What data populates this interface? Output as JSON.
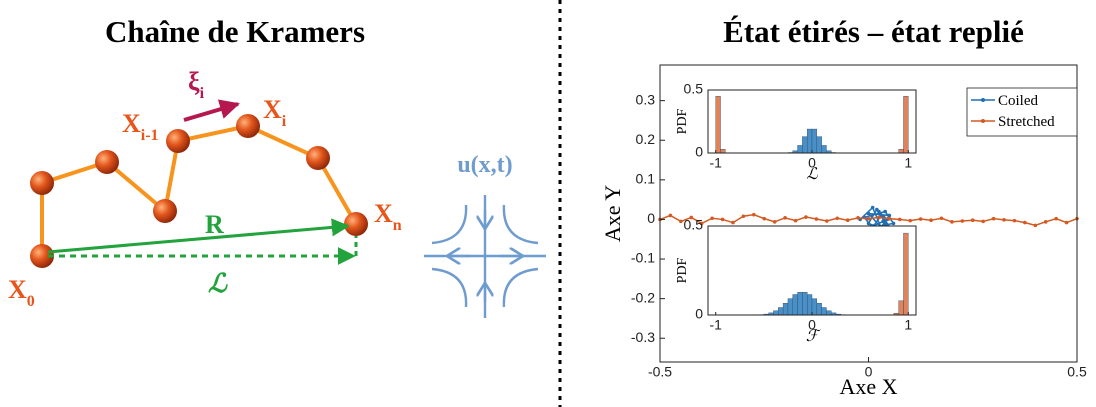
{
  "diagram": {
    "title": "Chaîne de Kramers",
    "x0": {
      "text": "X",
      "sub": "0"
    },
    "xi_minus_1": {
      "text": "X",
      "sub": "i-1"
    },
    "xi": {
      "text": "X",
      "sub": "i"
    },
    "xn": {
      "text": "X",
      "sub": "n"
    },
    "force": {
      "text": "ξ",
      "sub": "i"
    },
    "r": "R",
    "l": "ℒ",
    "flow": "u(x,t)"
  },
  "chart_data": [
    {
      "type": "line",
      "title": "État étirés – état replié",
      "xlabel": "Axe X",
      "ylabel": "Axe Y",
      "xlim": [
        -0.5,
        0.5
      ],
      "ylim": [
        -0.36,
        0.39
      ],
      "xticks": [
        -0.5,
        0,
        0.5
      ],
      "yticks": [
        -0.3,
        -0.2,
        -0.1,
        0,
        0.1,
        0.2,
        0.3
      ],
      "legend": "upper right",
      "series": [
        {
          "name": "Coiled",
          "color": "#1f6fb4",
          "x": [
            -0.02,
            0.01,
            0.03,
            0.0,
            0.05,
            0.02,
            -0.01,
            0.04,
            0.06,
            0.01,
            0.03,
            0.05,
            0.0,
            0.02,
            0.045,
            0.015,
            0.035,
            0.055,
            0.025,
            0.04
          ],
          "values": [
            0.0,
            0.03,
            -0.02,
            0.015,
            0.01,
            -0.035,
            0.005,
            0.02,
            -0.01,
            -0.02,
            0.01,
            -0.03,
            -0.01,
            0.025,
            0.0,
            -0.015,
            -0.005,
            -0.025,
            0.02,
            -0.01
          ]
        },
        {
          "name": "Stretched",
          "color": "#d45a22",
          "x": [
            -0.5,
            -0.475,
            -0.45,
            -0.425,
            -0.4,
            -0.375,
            -0.35,
            -0.325,
            -0.3,
            -0.275,
            -0.25,
            -0.225,
            -0.2,
            -0.175,
            -0.15,
            -0.125,
            -0.1,
            -0.075,
            -0.05,
            -0.025,
            0,
            0.025,
            0.05,
            0.075,
            0.1,
            0.125,
            0.15,
            0.175,
            0.2,
            0.225,
            0.25,
            0.275,
            0.3,
            0.325,
            0.35,
            0.375,
            0.4,
            0.425,
            0.45,
            0.475,
            0.5
          ],
          "values": [
            0,
            0.01,
            -0.005,
            0.005,
            -0.01,
            0.003,
            0,
            -0.008,
            0.008,
            0.012,
            0.002,
            -0.006,
            0.004,
            -0.003,
            0.006,
            0.001,
            -0.004,
            0.003,
            -0.002,
            0.004,
            0.002,
            0.005,
            0.002,
            0,
            -0.003,
            0.001,
            -0.002,
            0.003,
            -0.006,
            -0.004,
            -0.002,
            -0.005,
            0.002,
            -0.001,
            -0.003,
            -0.008,
            -0.015,
            -0.006,
            0.002,
            -0.008,
            0.002
          ]
        }
      ]
    },
    {
      "type": "histogram",
      "xlabel": "ℒ",
      "ylabel": "PDF",
      "xlim": [
        -1.08,
        1.08
      ],
      "ylim": [
        0,
        0.5
      ],
      "xticks": [
        -1,
        0,
        1
      ],
      "yticks": [
        0,
        0.5
      ],
      "bins": [
        -1,
        -0.95,
        -0.9,
        -0.85,
        -0.8,
        -0.75,
        -0.7,
        -0.65,
        -0.6,
        -0.55,
        -0.5,
        -0.45,
        -0.4,
        -0.35,
        -0.3,
        -0.25,
        -0.2,
        -0.15,
        -0.1,
        -0.05,
        0,
        0.05,
        0.1,
        0.15,
        0.2,
        0.25,
        0.3,
        0.35,
        0.4,
        0.45,
        0.5,
        0.55,
        0.6,
        0.65,
        0.7,
        0.75,
        0.8,
        0.85,
        0.9,
        0.95,
        1
      ],
      "series": [
        {
          "color": "#4a90c8",
          "values": [
            0,
            0,
            0,
            0,
            0,
            0,
            0,
            0,
            0,
            0,
            0,
            0,
            0,
            0,
            0,
            0.004,
            0.018,
            0.06,
            0.13,
            0.19,
            0.19,
            0.13,
            0.06,
            0.018,
            0.004,
            0,
            0,
            0,
            0,
            0,
            0,
            0,
            0,
            0,
            0,
            0,
            0,
            0,
            0,
            0
          ]
        },
        {
          "color": "#e0835a",
          "values": [
            0.45,
            0.03,
            0,
            0,
            0,
            0,
            0,
            0,
            0,
            0,
            0,
            0,
            0,
            0,
            0,
            0,
            0,
            0,
            0,
            0,
            0,
            0,
            0,
            0,
            0,
            0,
            0,
            0,
            0,
            0,
            0,
            0,
            0,
            0,
            0,
            0,
            0,
            0,
            0.03,
            0.45
          ]
        }
      ]
    },
    {
      "type": "histogram",
      "xlabel": "ℱ",
      "ylabel": "PDF",
      "xlim": [
        -1.08,
        1.08
      ],
      "ylim": [
        0,
        0.5
      ],
      "xticks": [
        -1,
        0,
        1
      ],
      "yticks": [
        0,
        0.5
      ],
      "bins": [
        -1,
        -0.95,
        -0.9,
        -0.85,
        -0.8,
        -0.75,
        -0.7,
        -0.65,
        -0.6,
        -0.55,
        -0.5,
        -0.45,
        -0.4,
        -0.35,
        -0.3,
        -0.25,
        -0.2,
        -0.15,
        -0.1,
        -0.05,
        0,
        0.05,
        0.1,
        0.15,
        0.2,
        0.25,
        0.3,
        0.35,
        0.4,
        0.45,
        0.5,
        0.55,
        0.6,
        0.65,
        0.7,
        0.75,
        0.8,
        0.85,
        0.9,
        0.95,
        1
      ],
      "series": [
        {
          "color": "#4a90c8",
          "values": [
            0,
            0,
            0,
            0,
            0,
            0,
            0,
            0,
            0,
            0.002,
            0.005,
            0.012,
            0.024,
            0.042,
            0.066,
            0.092,
            0.115,
            0.128,
            0.128,
            0.115,
            0.092,
            0.066,
            0.042,
            0.024,
            0.012,
            0.005,
            0.002,
            0,
            0,
            0,
            0,
            0,
            0,
            0,
            0,
            0,
            0,
            0,
            0,
            0
          ]
        },
        {
          "color": "#e0835a",
          "values": [
            0,
            0,
            0,
            0,
            0,
            0,
            0,
            0,
            0,
            0,
            0,
            0,
            0,
            0,
            0,
            0,
            0,
            0,
            0,
            0,
            0,
            0,
            0,
            0,
            0,
            0,
            0,
            0,
            0,
            0,
            0,
            0,
            0,
            0,
            0,
            0,
            0,
            0.01,
            0.08,
            0.46
          ]
        }
      ]
    }
  ]
}
